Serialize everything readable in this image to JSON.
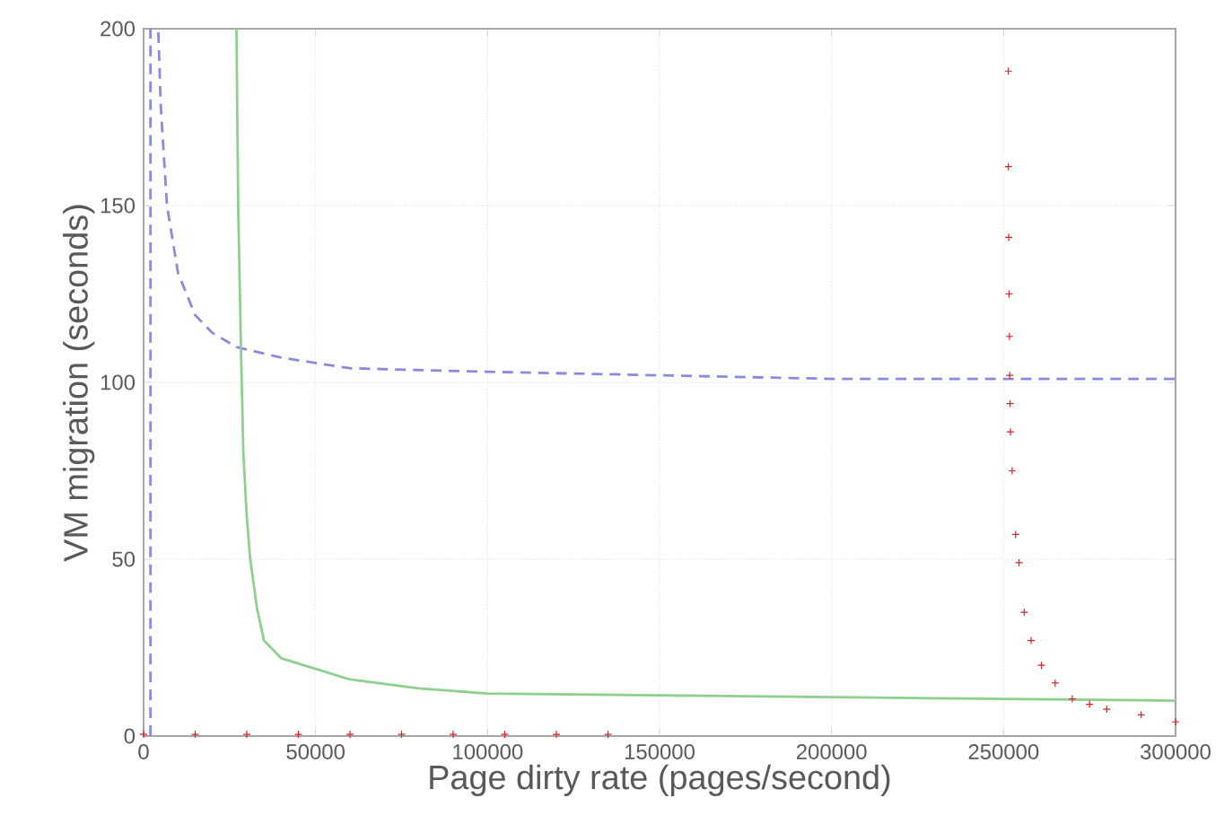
{
  "chart_data": {
    "type": "line",
    "xlabel": "Page dirty rate (pages/second)",
    "ylabel": "VM migration (seconds)",
    "xlim": [
      0,
      300000
    ],
    "ylim": [
      0,
      200
    ],
    "xticks": [
      0,
      50000,
      100000,
      150000,
      200000,
      250000,
      300000
    ],
    "yticks": [
      0,
      50,
      100,
      150,
      200
    ],
    "grid": true,
    "legend": false,
    "series": [
      {
        "line_style": "dashed",
        "marker": "none",
        "color": "#8a8ae0",
        "x": [
          2000,
          2000,
          2600,
          4300,
          5000,
          6800,
          10000,
          15000,
          20000,
          27000,
          40000,
          60000,
          100000,
          150000,
          200000,
          250000,
          300000
        ],
        "values": [
          0,
          200,
          null,
          199,
          178,
          150,
          131,
          119,
          114,
          110,
          107,
          104,
          103,
          102,
          101,
          101,
          101
        ]
      },
      {
        "line_style": "solid",
        "marker": "none",
        "color": "#8fd08f",
        "x": [
          27000,
          27500,
          28300,
          29000,
          30000,
          31000,
          33000,
          35000,
          40000,
          50000,
          60000,
          80000,
          100000,
          150000,
          200000,
          250000,
          300000
        ],
        "values": [
          200,
          150,
          110,
          80,
          62,
          50,
          36,
          27,
          22,
          19,
          16,
          13.5,
          12,
          11.5,
          11,
          10.5,
          10
        ]
      },
      {
        "type": "scatter",
        "marker": "cross",
        "color": "#e02020",
        "x": [
          0,
          15000,
          30000,
          45000,
          60000,
          75000,
          90000,
          105000,
          120000,
          135000,
          251400,
          251400,
          251500,
          251600,
          251700,
          251800,
          251900,
          252000,
          252500,
          253500,
          254500,
          256000,
          258000,
          261000,
          265000,
          270000,
          275000,
          280000,
          290000,
          300000
        ],
        "values": [
          0.5,
          0.5,
          0.5,
          0.5,
          0.5,
          0.5,
          0.5,
          0.5,
          0.5,
          0.5,
          188,
          161,
          141,
          125,
          113,
          102,
          94,
          86,
          75,
          57,
          49,
          35,
          27,
          20,
          15,
          10.5,
          9,
          7.6,
          6,
          4
        ]
      }
    ]
  }
}
